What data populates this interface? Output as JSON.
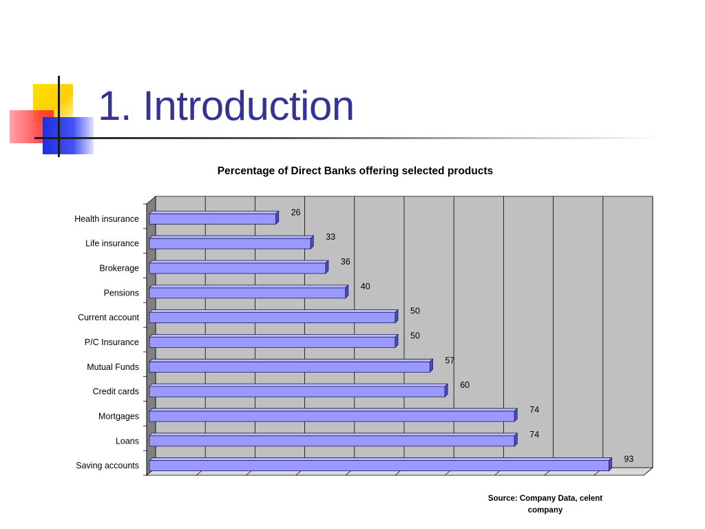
{
  "slide": {
    "title": "1. Introduction",
    "source": "Source: Company Data, celent company"
  },
  "colors": {
    "title": "#333399",
    "bar_fill": "#9999ff",
    "bar_top": "#b8b8ff",
    "bar_side": "#4d4db3",
    "bar_stroke": "#1a1a5e",
    "plot_wall": "#c0c0c0",
    "plot_floor": "#d9d9d9",
    "gridline": "#000000"
  },
  "logo": {
    "icon": "colored-squares-logo-icon"
  },
  "chart_data": {
    "type": "bar",
    "orientation": "horizontal",
    "three_d": true,
    "title": "Percentage of Direct Banks offering selected products",
    "categories": [
      "Health insurance",
      "Life insurance",
      "Brokerage",
      "Pensions",
      "Current account",
      "P/C Insurance",
      "Mutual Funds",
      "Credit cards",
      "Mortgages",
      "Loans",
      "Saving accounts"
    ],
    "values": [
      26,
      33,
      36,
      40,
      50,
      50,
      57,
      60,
      74,
      74,
      93
    ],
    "xlim": [
      0,
      100
    ],
    "grid": true,
    "legend": "none",
    "data_labels": true
  }
}
